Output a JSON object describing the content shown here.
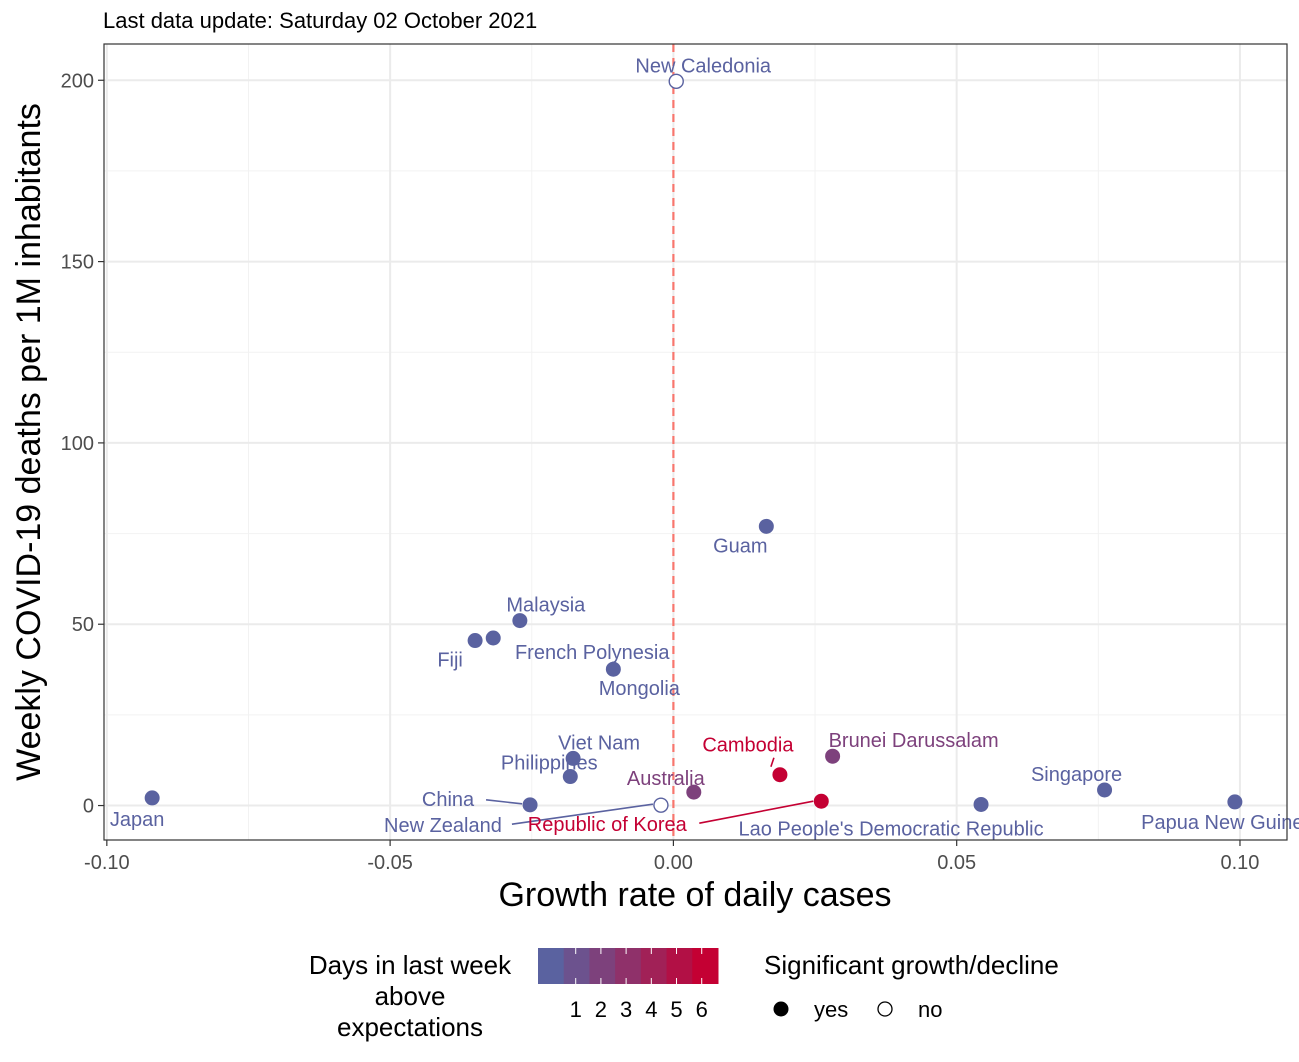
{
  "subtitle": "Last data update: Saturday 02 October 2021",
  "chart_data": {
    "type": "scatter",
    "title": "",
    "subtitle": "Last data update: Saturday 02 October 2021",
    "xlabel": "Growth rate of daily cases",
    "ylabel": "Weekly COVID-19 deaths per 1M inhabitants",
    "xlim": [
      -0.1005,
      0.1083
    ],
    "ylim": [
      -9.5,
      210
    ],
    "x_ticks": [
      -0.1,
      -0.05,
      0.0,
      0.05,
      0.1
    ],
    "x_tick_labels": [
      "-0.10",
      "-0.05",
      "0.00",
      "0.05",
      "0.10"
    ],
    "y_ticks": [
      0,
      50,
      100,
      150,
      200
    ],
    "y_tick_labels": [
      "0",
      "50",
      "100",
      "150",
      "200"
    ],
    "grid": true,
    "reference_line": {
      "x": 0,
      "style": "dashed",
      "color": "#F8766D"
    },
    "points": [
      {
        "name": "Japan",
        "x": -0.092,
        "y": 2.1,
        "days": 0,
        "significant": "yes"
      },
      {
        "name": "China",
        "x": -0.0253,
        "y": 0.2,
        "days": 0,
        "significant": "yes"
      },
      {
        "name": "New Zealand",
        "x": -0.0022,
        "y": 0.1,
        "days": 0,
        "significant": "no"
      },
      {
        "name": "Philippines",
        "x": -0.0182,
        "y": 8.0,
        "days": 0,
        "significant": "yes"
      },
      {
        "name": "Viet Nam",
        "x": -0.0177,
        "y": 13.0,
        "days": 0,
        "significant": "yes"
      },
      {
        "name": "Fiji",
        "x": -0.035,
        "y": 45.5,
        "days": 0,
        "significant": "yes"
      },
      {
        "name": "French Polynesia",
        "x": -0.0318,
        "y": 46.2,
        "days": 0,
        "significant": "yes"
      },
      {
        "name": "Malaysia",
        "x": -0.0271,
        "y": 51.0,
        "days": 0,
        "significant": "yes"
      },
      {
        "name": "Mongolia",
        "x": -0.0106,
        "y": 37.6,
        "days": 0,
        "significant": "yes"
      },
      {
        "name": "New Caledonia",
        "x": 0.0005,
        "y": 199.7,
        "days": 0,
        "significant": "no"
      },
      {
        "name": "Guam",
        "x": 0.0164,
        "y": 77.0,
        "days": 0,
        "significant": "yes"
      },
      {
        "name": "Australia",
        "x": 0.0036,
        "y": 3.7,
        "days": 2,
        "significant": "yes"
      },
      {
        "name": "Cambodia",
        "x": 0.0188,
        "y": 8.5,
        "days": 6,
        "significant": "yes"
      },
      {
        "name": "Republic of Korea",
        "x": 0.0261,
        "y": 1.2,
        "days": 6,
        "significant": "yes"
      },
      {
        "name": "Brunei Darussalam",
        "x": 0.0281,
        "y": 13.6,
        "days": 2,
        "significant": "yes"
      },
      {
        "name": "Lao People's Democratic Republic",
        "x": 0.0543,
        "y": 0.3,
        "days": 0,
        "significant": "yes"
      },
      {
        "name": "Singapore",
        "x": 0.0761,
        "y": 4.3,
        "days": 0,
        "significant": "yes"
      },
      {
        "name": "Papua New Guinea",
        "x": 0.0991,
        "y": 1.0,
        "days": 0,
        "significant": "yes"
      }
    ]
  },
  "legend": {
    "color_title_lines": [
      "Days in last week",
      "above",
      "expectations"
    ],
    "color_ticks": [
      "1",
      "2",
      "3",
      "4",
      "5",
      "6"
    ],
    "color_low": "#5A62A0",
    "color_high": "#C40033",
    "shape_title": "Significant growth/decline",
    "shape_items": [
      "yes",
      "no"
    ]
  }
}
